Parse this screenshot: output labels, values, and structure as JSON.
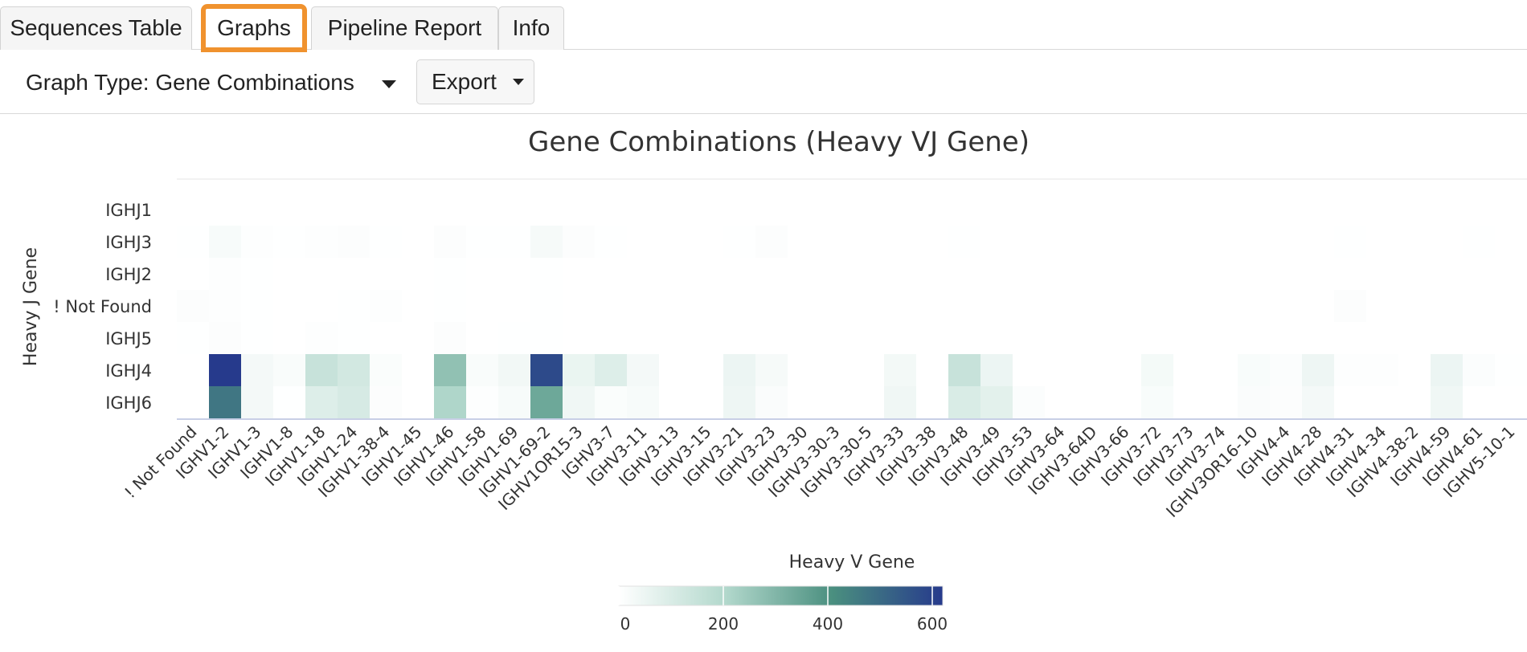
{
  "tabs": [
    {
      "label": "Sequences Table",
      "active": false
    },
    {
      "label": "Graphs",
      "active": true
    },
    {
      "label": "Pipeline Report",
      "active": false
    },
    {
      "label": "Info",
      "active": false
    }
  ],
  "toolbar": {
    "graph_type_label": "Graph Type: Gene Combinations",
    "export_label": "Export"
  },
  "colors": {
    "active_tab_outline": "#f0922e",
    "scale_low": "#ffffff",
    "scale_mid1": "#b2d8cc",
    "scale_mid2": "#4a8f7f",
    "scale_high": "#263a8c"
  },
  "chart_data": {
    "type": "heatmap",
    "title": "Gene Combinations (Heavy VJ Gene)",
    "xlabel": "Heavy V Gene",
    "ylabel": "Heavy J Gene",
    "x": [
      "! Not Found",
      "IGHV1-2",
      "IGHV1-3",
      "IGHV1-8",
      "IGHV1-18",
      "IGHV1-24",
      "IGHV1-38-4",
      "IGHV1-45",
      "IGHV1-46",
      "IGHV1-58",
      "IGHV1-69",
      "IGHV1-69-2",
      "IGHV1OR15-3",
      "IGHV3-7",
      "IGHV3-11",
      "IGHV3-13",
      "IGHV3-15",
      "IGHV3-21",
      "IGHV3-23",
      "IGHV3-30",
      "IGHV3-30-3",
      "IGHV3-30-5",
      "IGHV3-33",
      "IGHV3-38",
      "IGHV3-48",
      "IGHV3-49",
      "IGHV3-53",
      "IGHV3-64",
      "IGHV3-64D",
      "IGHV3-66",
      "IGHV3-72",
      "IGHV3-73",
      "IGHV3-74",
      "IGHV3OR16-10",
      "IGHV4-4",
      "IGHV4-28",
      "IGHV4-31",
      "IGHV4-34",
      "IGHV4-38-2",
      "IGHV4-59",
      "IGHV4-61",
      "IGHV5-10-1"
    ],
    "y": [
      "IGHJ1",
      "IGHJ3",
      "IGHJ2",
      "! Not Found",
      "IGHJ5",
      "IGHJ4",
      "IGHJ6"
    ],
    "z": [
      [
        0,
        0,
        0,
        0,
        0,
        0,
        0,
        0,
        0,
        0,
        0,
        0,
        0,
        0,
        0,
        0,
        0,
        0,
        0,
        0,
        0,
        0,
        0,
        0,
        0,
        0,
        0,
        0,
        0,
        0,
        0,
        0,
        0,
        0,
        0,
        0,
        0,
        0,
        0,
        0,
        0,
        0
      ],
      [
        2,
        22,
        6,
        2,
        6,
        8,
        2,
        0,
        9,
        2,
        2,
        24,
        8,
        2,
        0,
        0,
        0,
        2,
        8,
        0,
        0,
        0,
        0,
        0,
        2,
        0,
        0,
        0,
        0,
        0,
        0,
        0,
        0,
        0,
        0,
        0,
        2,
        0,
        0,
        0,
        2,
        0
      ],
      [
        0,
        6,
        2,
        0,
        0,
        0,
        0,
        0,
        2,
        0,
        0,
        2,
        0,
        0,
        0,
        0,
        0,
        0,
        0,
        0,
        0,
        0,
        0,
        0,
        0,
        0,
        0,
        0,
        0,
        0,
        0,
        0,
        0,
        0,
        0,
        0,
        0,
        0,
        0,
        0,
        0,
        0
      ],
      [
        8,
        6,
        2,
        0,
        0,
        2,
        6,
        0,
        2,
        0,
        0,
        2,
        0,
        0,
        0,
        0,
        0,
        0,
        0,
        0,
        0,
        0,
        0,
        0,
        0,
        0,
        0,
        0,
        0,
        0,
        0,
        0,
        0,
        0,
        0,
        0,
        8,
        0,
        0,
        0,
        0,
        0
      ],
      [
        2,
        8,
        2,
        0,
        4,
        2,
        0,
        0,
        8,
        0,
        2,
        2,
        0,
        0,
        0,
        0,
        0,
        0,
        0,
        0,
        0,
        0,
        0,
        0,
        0,
        0,
        0,
        0,
        0,
        0,
        0,
        0,
        0,
        0,
        0,
        0,
        0,
        0,
        0,
        0,
        0,
        0
      ],
      [
        0,
        620,
        30,
        15,
        150,
        120,
        12,
        0,
        270,
        15,
        35,
        580,
        55,
        90,
        30,
        0,
        0,
        50,
        25,
        0,
        0,
        0,
        32,
        0,
        150,
        50,
        0,
        0,
        0,
        0,
        28,
        0,
        0,
        18,
        10,
        45,
        6,
        4,
        0,
        50,
        10,
        2
      ],
      [
        0,
        470,
        30,
        2,
        90,
        110,
        8,
        0,
        210,
        4,
        20,
        340,
        40,
        12,
        22,
        0,
        0,
        45,
        14,
        0,
        0,
        0,
        40,
        0,
        100,
        75,
        10,
        0,
        0,
        0,
        18,
        0,
        0,
        14,
        8,
        30,
        0,
        0,
        0,
        40,
        0,
        0
      ]
    ],
    "colorscale": {
      "min": 0,
      "max": 620,
      "ticks": [
        0,
        200,
        400,
        600
      ]
    }
  }
}
